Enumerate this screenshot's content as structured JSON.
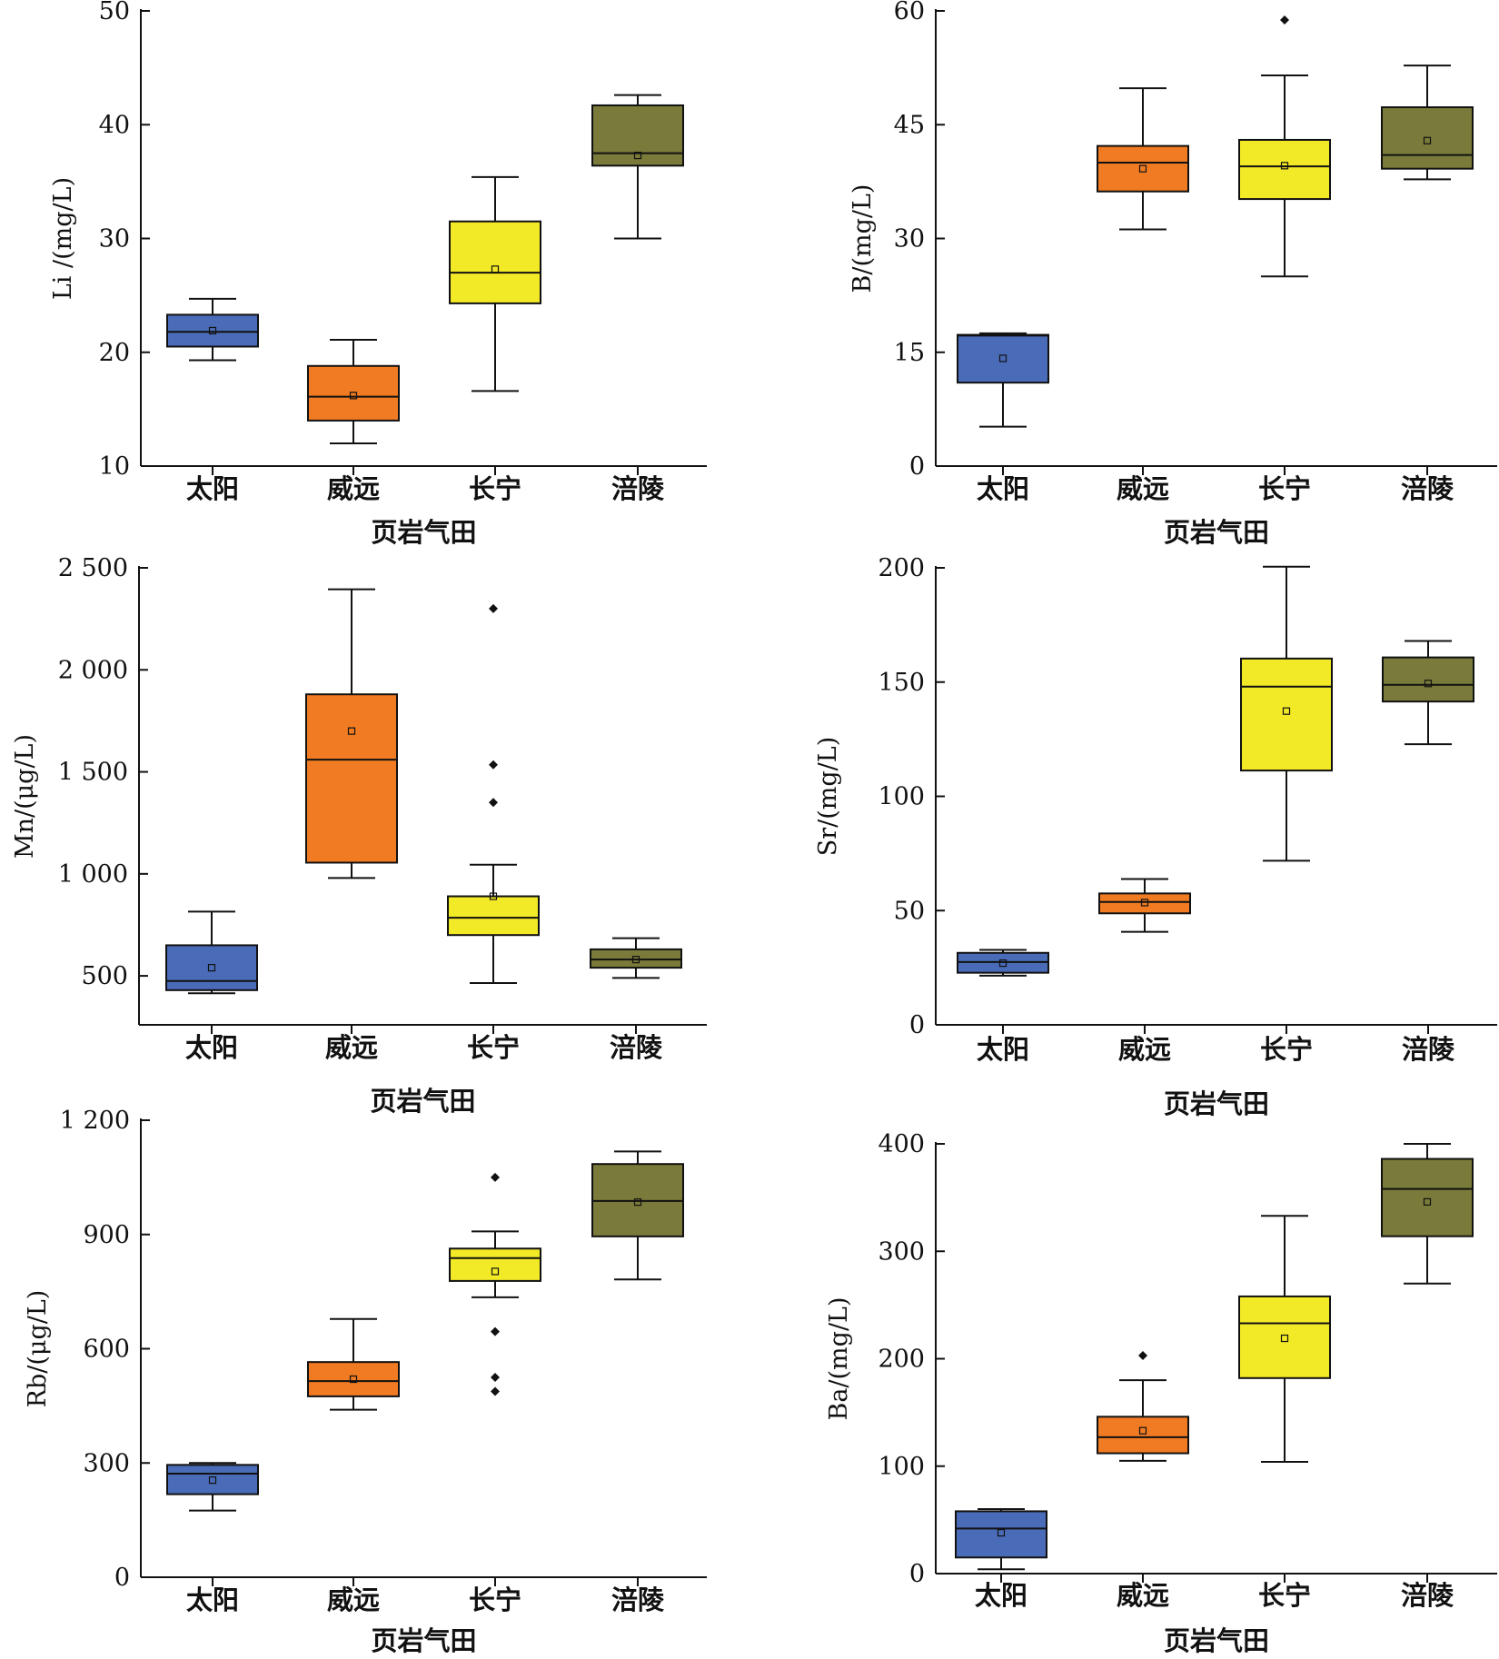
{
  "colors": {
    "taiyang": "#4a6bb7",
    "weiyuan": "#f07b22",
    "changning": "#f2e927",
    "fuling": "#7a7a3a",
    "axis": "#111111"
  },
  "chart_data": [
    {
      "type": "box",
      "categories": [
        "太阳",
        "威远",
        "长宁",
        "涪陵"
      ],
      "xlabel": "页岩气田",
      "ylabel": "Li /(mg/L)",
      "ylim": [
        10,
        50
      ],
      "yticks": [
        10,
        20,
        30,
        40,
        50
      ],
      "ytick_labels": [
        "10",
        "20",
        "30",
        "40",
        "50"
      ],
      "boxes": [
        {
          "min": 19.3,
          "q1": 20.5,
          "median": 21.8,
          "q3": 23.3,
          "max": 24.7,
          "mean": 21.9,
          "outliers": []
        },
        {
          "min": 12.0,
          "q1": 14.0,
          "median": 16.1,
          "q3": 18.8,
          "max": 21.1,
          "mean": 16.2,
          "outliers": []
        },
        {
          "min": 16.6,
          "q1": 24.3,
          "median": 27.0,
          "q3": 31.5,
          "max": 35.4,
          "mean": 27.3,
          "outliers": []
        },
        {
          "min": 30.0,
          "q1": 36.4,
          "median": 37.5,
          "q3": 41.7,
          "max": 42.6,
          "mean": 37.3,
          "outliers": []
        }
      ]
    },
    {
      "type": "box",
      "categories": [
        "太阳",
        "威远",
        "长宁",
        "涪陵"
      ],
      "xlabel": "页岩气田",
      "ylabel": "B/(mg/L)",
      "ylim": [
        0,
        60
      ],
      "yticks": [
        0,
        15,
        30,
        45,
        60
      ],
      "ytick_labels": [
        "0",
        "15",
        "30",
        "45",
        "60"
      ],
      "boxes": [
        {
          "min": 5.2,
          "q1": 11.0,
          "median": 17.2,
          "q3": 17.3,
          "max": 17.5,
          "mean": 14.2,
          "outliers": []
        },
        {
          "min": 31.2,
          "q1": 36.2,
          "median": 40.0,
          "q3": 42.2,
          "max": 49.8,
          "mean": 39.2,
          "outliers": []
        },
        {
          "min": 25.0,
          "q1": 35.2,
          "median": 39.5,
          "q3": 43.0,
          "max": 51.5,
          "mean": 39.6,
          "outliers": [
            58.8
          ]
        },
        {
          "min": 37.8,
          "q1": 39.2,
          "median": 41.0,
          "q3": 47.3,
          "max": 52.8,
          "mean": 42.9,
          "outliers": []
        }
      ]
    },
    {
      "type": "box",
      "categories": [
        "太阳",
        "威远",
        "长宁",
        "涪陵"
      ],
      "xlabel": "页岩气田",
      "ylabel": "Mn/(μg/L)",
      "ylim": [
        260,
        2500
      ],
      "yticks": [
        500,
        1000,
        1500,
        2000,
        2500
      ],
      "ytick_labels": [
        "500",
        "1 000",
        "1 500",
        "2 000",
        "2 500"
      ],
      "boxes": [
        {
          "min": 415,
          "q1": 430,
          "median": 475,
          "q3": 650,
          "max": 815,
          "mean": 540,
          "outliers": []
        },
        {
          "min": 980,
          "q1": 1055,
          "median": 1560,
          "q3": 1880,
          "max": 2395,
          "mean": 1700,
          "outliers": []
        },
        {
          "min": 465,
          "q1": 700,
          "median": 785,
          "q3": 890,
          "max": 1045,
          "mean": 890,
          "outliers": [
            1350,
            1535,
            2300
          ]
        },
        {
          "min": 490,
          "q1": 540,
          "median": 580,
          "q3": 630,
          "max": 685,
          "mean": 580,
          "outliers": []
        }
      ]
    },
    {
      "type": "box",
      "categories": [
        "太阳",
        "威远",
        "长宁",
        "涪陵"
      ],
      "xlabel": "页岩气田",
      "ylabel": "Sr/(mg/L)",
      "ylim": [
        0,
        200
      ],
      "yticks": [
        0,
        50,
        100,
        150,
        200
      ],
      "ytick_labels": [
        "0",
        "50",
        "100",
        "150",
        "200"
      ],
      "boxes": [
        {
          "min": 21.5,
          "q1": 22.8,
          "median": 27.5,
          "q3": 31.5,
          "max": 32.8,
          "mean": 27.0,
          "outliers": []
        },
        {
          "min": 40.7,
          "q1": 48.8,
          "median": 53.8,
          "q3": 57.5,
          "max": 63.8,
          "mean": 53.5,
          "outliers": []
        },
        {
          "min": 71.8,
          "q1": 111.3,
          "median": 148.0,
          "q3": 160.3,
          "max": 200.5,
          "mean": 137.3,
          "outliers": []
        },
        {
          "min": 122.8,
          "q1": 141.5,
          "median": 148.8,
          "q3": 160.8,
          "max": 168.0,
          "mean": 149.4,
          "outliers": []
        }
      ]
    },
    {
      "type": "box",
      "categories": [
        "太阳",
        "威远",
        "长宁",
        "涪陵"
      ],
      "xlabel": "页岩气田",
      "ylabel": "Rb/(μg/L)",
      "ylim": [
        0,
        1200
      ],
      "yticks": [
        0,
        300,
        600,
        900,
        1200
      ],
      "ytick_labels": [
        "0",
        "300",
        "600",
        "900",
        "1 200"
      ],
      "boxes": [
        {
          "min": 175,
          "q1": 218,
          "median": 272,
          "q3": 295,
          "max": 300,
          "mean": 255,
          "outliers": []
        },
        {
          "min": 440,
          "q1": 475,
          "median": 515,
          "q3": 565,
          "max": 678,
          "mean": 520,
          "outliers": []
        },
        {
          "min": 735,
          "q1": 778,
          "median": 838,
          "q3": 863,
          "max": 908,
          "mean": 803,
          "outliers": [
            488,
            525,
            645,
            1050
          ]
        },
        {
          "min": 782,
          "q1": 895,
          "median": 988,
          "q3": 1085,
          "max": 1118,
          "mean": 985,
          "outliers": []
        }
      ]
    },
    {
      "type": "box",
      "categories": [
        "太阳",
        "威远",
        "长宁",
        "涪陵"
      ],
      "xlabel": "页岩气田",
      "ylabel": "Ba/(mg/L)",
      "ylim": [
        0,
        400
      ],
      "yticks": [
        0,
        100,
        200,
        300,
        400
      ],
      "ytick_labels": [
        "0",
        "100",
        "200",
        "300",
        "400"
      ],
      "boxes": [
        {
          "min": 4,
          "q1": 15,
          "median": 42,
          "q3": 58,
          "max": 60,
          "mean": 38,
          "outliers": []
        },
        {
          "min": 105,
          "q1": 112,
          "median": 127,
          "q3": 146,
          "max": 180,
          "mean": 133,
          "outliers": [
            203
          ]
        },
        {
          "min": 104,
          "q1": 182,
          "median": 233,
          "q3": 258,
          "max": 333,
          "mean": 219,
          "outliers": []
        },
        {
          "min": 270,
          "q1": 314,
          "median": 358,
          "q3": 386,
          "max": 400,
          "mean": 346,
          "outliers": []
        }
      ]
    }
  ]
}
